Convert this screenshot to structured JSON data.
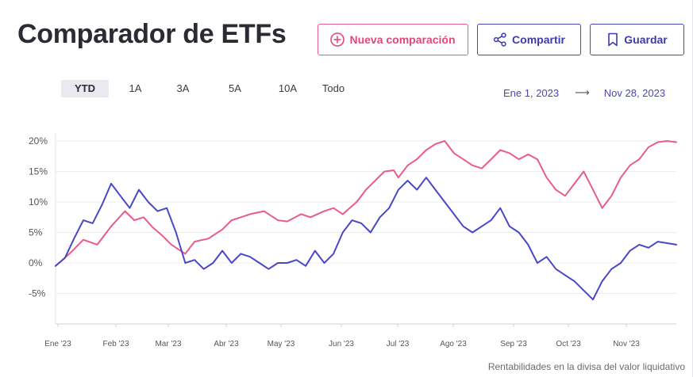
{
  "header": {
    "title": "Comparador de ETFs",
    "new_label": "Nueva comparación",
    "share_label": "Compartir",
    "save_label": "Guardar"
  },
  "periods": {
    "items": [
      "YTD",
      "1A",
      "3A",
      "5A",
      "10A",
      "Todo"
    ],
    "active": "YTD"
  },
  "date_range": {
    "start": "Ene 1, 2023",
    "end": "Nov 28, 2023"
  },
  "footnote": "Rentabilidades en la divisa del valor liquidativo",
  "colors": {
    "pink": "#e85b8a",
    "blue": "#4a47c6",
    "accent_pink": "#e1477b",
    "accent_blue": "#3e3bb0"
  },
  "chart_data": {
    "type": "line",
    "x_ticks": [
      "Ene '23",
      "Feb '23",
      "Mar '23",
      "Abr '23",
      "May '23",
      "Jun '23",
      "Jul '23",
      "Ago '23",
      "Sep '23",
      "Oct '23",
      "Nov '23"
    ],
    "y_ticks": [
      "20%",
      "15%",
      "10%",
      "5%",
      "0%",
      "-5%"
    ],
    "ylim": [
      -10,
      20
    ],
    "grid": true,
    "series": [
      {
        "color": "#e85b8a",
        "points": [
          [
            0,
            -0.5
          ],
          [
            3,
            1.5
          ],
          [
            6,
            3.8
          ],
          [
            9,
            3
          ],
          [
            12,
            6
          ],
          [
            15,
            8.5
          ],
          [
            17,
            7
          ],
          [
            19,
            7.5
          ],
          [
            21,
            5.8
          ],
          [
            23,
            4.5
          ],
          [
            25,
            3
          ],
          [
            28,
            1.5
          ],
          [
            30,
            3.5
          ],
          [
            33,
            4
          ],
          [
            36,
            5.5
          ],
          [
            38,
            7
          ],
          [
            40,
            7.5
          ],
          [
            42,
            8
          ],
          [
            45,
            8.5
          ],
          [
            48,
            7
          ],
          [
            50,
            6.8
          ],
          [
            53,
            8
          ],
          [
            55,
            7.5
          ],
          [
            58,
            8.5
          ],
          [
            60,
            9
          ],
          [
            62,
            8
          ],
          [
            65,
            10
          ],
          [
            67,
            12
          ],
          [
            69,
            13.5
          ],
          [
            71,
            15
          ],
          [
            73,
            15.2
          ],
          [
            74,
            14
          ],
          [
            76,
            16
          ],
          [
            78,
            17
          ],
          [
            80,
            18.5
          ],
          [
            82,
            19.5
          ],
          [
            84,
            20
          ],
          [
            86,
            18
          ],
          [
            88,
            17
          ],
          [
            90,
            16
          ],
          [
            92,
            15.5
          ],
          [
            94,
            17
          ],
          [
            96,
            18.5
          ],
          [
            98,
            18
          ],
          [
            100,
            17
          ],
          [
            102,
            17.8
          ],
          [
            104,
            17
          ],
          [
            106,
            14
          ],
          [
            108,
            12
          ],
          [
            110,
            11
          ],
          [
            112,
            13
          ],
          [
            114,
            15
          ],
          [
            116,
            12
          ],
          [
            118,
            9
          ],
          [
            120,
            11
          ],
          [
            122,
            14
          ],
          [
            124,
            16
          ],
          [
            126,
            17
          ],
          [
            128,
            19
          ],
          [
            130,
            19.8
          ],
          [
            132,
            20
          ],
          [
            134,
            19.8
          ]
        ]
      },
      {
        "color": "#4a47c6",
        "points": [
          [
            0,
            -0.5
          ],
          [
            2,
            0.8
          ],
          [
            4,
            4
          ],
          [
            6,
            7
          ],
          [
            8,
            6.5
          ],
          [
            10,
            9.5
          ],
          [
            12,
            13
          ],
          [
            14,
            11
          ],
          [
            16,
            9
          ],
          [
            18,
            12
          ],
          [
            20,
            10
          ],
          [
            22,
            8.5
          ],
          [
            24,
            9
          ],
          [
            26,
            5
          ],
          [
            28,
            0
          ],
          [
            30,
            0.5
          ],
          [
            32,
            -1
          ],
          [
            34,
            0
          ],
          [
            36,
            2
          ],
          [
            38,
            0
          ],
          [
            40,
            1.5
          ],
          [
            42,
            1
          ],
          [
            44,
            0
          ],
          [
            46,
            -1
          ],
          [
            48,
            0
          ],
          [
            50,
            0
          ],
          [
            52,
            0.5
          ],
          [
            54,
            -0.5
          ],
          [
            56,
            2
          ],
          [
            58,
            0
          ],
          [
            60,
            1.5
          ],
          [
            62,
            5
          ],
          [
            64,
            7
          ],
          [
            66,
            6.5
          ],
          [
            68,
            5
          ],
          [
            70,
            7.5
          ],
          [
            72,
            9
          ],
          [
            74,
            12
          ],
          [
            76,
            13.5
          ],
          [
            78,
            12
          ],
          [
            80,
            14
          ],
          [
            82,
            12
          ],
          [
            84,
            10
          ],
          [
            86,
            8
          ],
          [
            88,
            6
          ],
          [
            90,
            5
          ],
          [
            92,
            6
          ],
          [
            94,
            7
          ],
          [
            96,
            9
          ],
          [
            98,
            6
          ],
          [
            100,
            5
          ],
          [
            102,
            3
          ],
          [
            104,
            0
          ],
          [
            106,
            1
          ],
          [
            108,
            -1
          ],
          [
            110,
            -2
          ],
          [
            112,
            -3
          ],
          [
            114,
            -4.5
          ],
          [
            116,
            -6
          ],
          [
            118,
            -3
          ],
          [
            120,
            -1
          ],
          [
            122,
            0
          ],
          [
            124,
            2
          ],
          [
            126,
            3
          ],
          [
            128,
            2.5
          ],
          [
            130,
            3.5
          ],
          [
            134,
            3
          ]
        ]
      }
    ]
  }
}
